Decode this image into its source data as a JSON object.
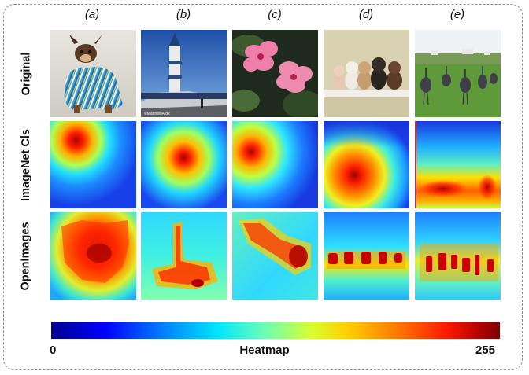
{
  "columns": [
    "(a)",
    "(b)",
    "(c)",
    "(d)",
    "(e)"
  ],
  "rows": [
    "Original",
    "ImageNet Cls",
    "OpenImages"
  ],
  "cells": {
    "original": [
      {
        "icon": "dog-in-striped-robe-photo"
      },
      {
        "icon": "minaret-mosque-photo",
        "caption": "©MatthewA.dk"
      },
      {
        "icon": "pink-hibiscus-photo"
      },
      {
        "icon": "teddy-bears-on-shelf-photo"
      },
      {
        "icon": "ostriches-in-field-photo"
      }
    ],
    "imagenet": [
      {
        "icon": "heatmap-icon",
        "hotspot": "upper-left"
      },
      {
        "icon": "heatmap-icon",
        "hotspot": "center"
      },
      {
        "icon": "heatmap-icon",
        "hotspot": "upper-left"
      },
      {
        "icon": "heatmap-icon",
        "hotspot": "lower-center"
      },
      {
        "icon": "heatmap-icon",
        "hotspot": "bottom"
      }
    ],
    "openimages": [
      {
        "icon": "heatmap-icon",
        "hotspot": "broad-center"
      },
      {
        "icon": "heatmap-icon",
        "hotspot": "vertical-lower"
      },
      {
        "icon": "heatmap-icon",
        "hotspot": "diagonal"
      },
      {
        "icon": "heatmap-icon",
        "hotspot": "horizontal-row"
      },
      {
        "icon": "heatmap-icon",
        "hotspot": "scattered-row"
      }
    ]
  },
  "colorbar": {
    "min": "0",
    "label": "Heatmap",
    "max": "255"
  }
}
